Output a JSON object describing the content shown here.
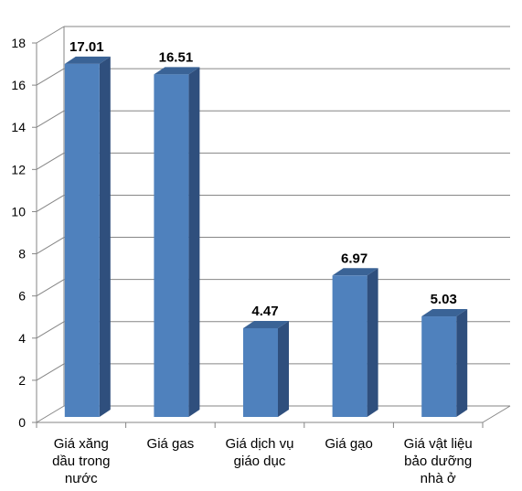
{
  "chart_data": {
    "type": "bar",
    "categories": [
      [
        "Giá xăng",
        "dầu trong",
        "nước"
      ],
      [
        "Giá gas"
      ],
      [
        "Giá dịch vụ",
        "giáo dục"
      ],
      [
        "Giá gạo"
      ],
      [
        "Giá vật liệu",
        "bảo dưỡng",
        "nhà ở"
      ]
    ],
    "values": [
      17.01,
      16.51,
      4.47,
      6.97,
      5.03
    ],
    "value_labels": [
      "17.01",
      "16.51",
      "4.47",
      "6.97",
      "5.03"
    ],
    "title": "",
    "xlabel": "",
    "ylabel": "",
    "ylim": [
      0,
      18
    ],
    "yticks": [
      "0",
      "2",
      "4",
      "6",
      "8",
      "10",
      "12",
      "14",
      "16",
      "18"
    ],
    "grid": true,
    "legend": "none",
    "style": "3d-column",
    "colors": {
      "bar_front": "#4f81bd",
      "bar_side": "#2f4f7d",
      "bar_top": "#3a6396",
      "grid": "#868686",
      "wall": "#ffffff"
    }
  }
}
